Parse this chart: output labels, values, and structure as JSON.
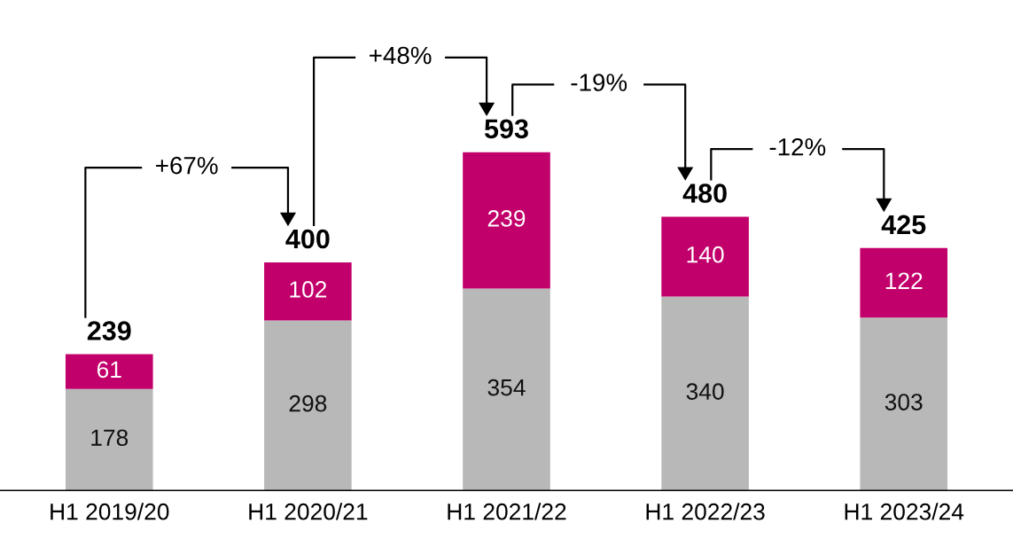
{
  "chart_data": {
    "type": "bar",
    "stacked": true,
    "data_labels": true,
    "categories": [
      "H1 2019/20",
      "H1 2020/21",
      "H1 2021/22",
      "H1 2022/23",
      "H1 2023/24"
    ],
    "series": [
      {
        "color": "#b8b8b8",
        "values": [
          178,
          298,
          354,
          340,
          303
        ]
      },
      {
        "color": "#c2006b",
        "values": [
          61,
          102,
          239,
          140,
          122
        ]
      }
    ],
    "totals": [
      "239",
      "400",
      "593",
      "480",
      "425"
    ],
    "annotations": [
      "+67%",
      "+48%",
      "-19%",
      "-12%"
    ],
    "tick_labels": "x",
    "grid": false,
    "legend": false
  }
}
